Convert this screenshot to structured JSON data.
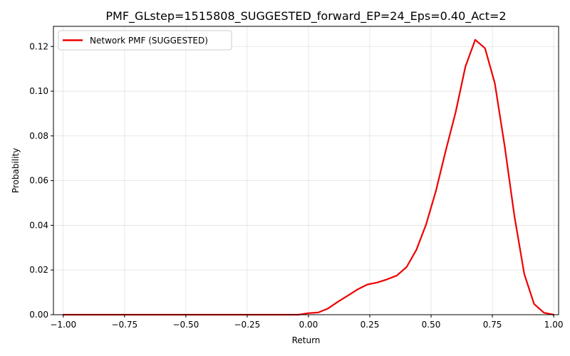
{
  "chart_data": {
    "type": "line",
    "title": "PMF_GLstep=1515808_SUGGESTED_forward_EP=24_Eps=0.40_Act=2",
    "xlabel": "Return",
    "ylabel": "Probability",
    "xlim": [
      -1.04,
      1.02
    ],
    "ylim": [
      0,
      0.129
    ],
    "xticks": [
      -1.0,
      -0.75,
      -0.5,
      -0.25,
      0.0,
      0.25,
      0.5,
      0.75,
      1.0
    ],
    "xtick_labels": [
      "−1.00",
      "−0.75",
      "−0.50",
      "−0.25",
      "0.00",
      "0.25",
      "0.50",
      "0.75",
      "1.00"
    ],
    "yticks": [
      0.0,
      0.02,
      0.04,
      0.06,
      0.08,
      0.1,
      0.12
    ],
    "ytick_labels": [
      "0.00",
      "0.02",
      "0.04",
      "0.06",
      "0.08",
      "0.10",
      "0.12"
    ],
    "grid": true,
    "legend_position": "top-left",
    "series": [
      {
        "name": "Network PMF (SUGGESTED)",
        "color": "#ee0000",
        "x": [
          -1.0,
          -0.96,
          -0.92,
          -0.88,
          -0.84,
          -0.8,
          -0.76,
          -0.72,
          -0.68,
          -0.64,
          -0.6,
          -0.56,
          -0.52,
          -0.48,
          -0.44,
          -0.4,
          -0.36,
          -0.32,
          -0.28,
          -0.24,
          -0.2,
          -0.16,
          -0.12,
          -0.08,
          -0.04,
          0.0,
          0.04,
          0.08,
          0.12,
          0.16,
          0.2,
          0.24,
          0.28,
          0.32,
          0.36,
          0.4,
          0.44,
          0.48,
          0.52,
          0.56,
          0.6,
          0.64,
          0.68,
          0.72,
          0.76,
          0.8,
          0.84,
          0.88,
          0.92,
          0.96,
          1.0
        ],
        "y": [
          0,
          0,
          0,
          0,
          0,
          0,
          0,
          0,
          0,
          0,
          0,
          0,
          0,
          0,
          0,
          0,
          0,
          0,
          0,
          0,
          0,
          0,
          0,
          0,
          0,
          0.0007,
          0.001,
          0.0028,
          0.0058,
          0.0085,
          0.0113,
          0.0135,
          0.0144,
          0.0158,
          0.0175,
          0.0213,
          0.029,
          0.0405,
          0.0555,
          0.0735,
          0.0905,
          0.111,
          0.123,
          0.1192,
          0.1035,
          0.0755,
          0.044,
          0.0182,
          0.0048,
          0.0009,
          0.0
        ]
      }
    ]
  }
}
